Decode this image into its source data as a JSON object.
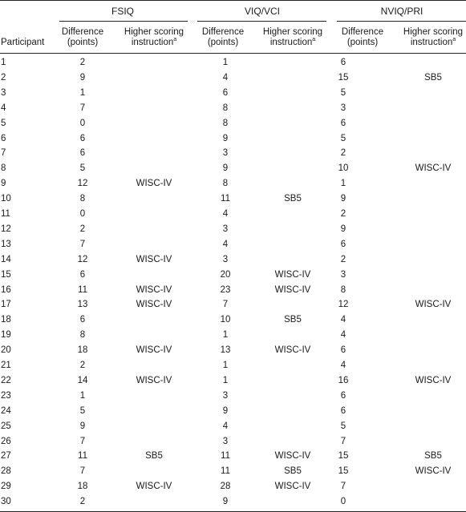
{
  "header": {
    "participant": "Participant",
    "groups": [
      "FSIQ",
      "VIQ/VCI",
      "NVIQ/PRI"
    ],
    "diff_line1": "Difference",
    "diff_line2": "(points)",
    "higher_line1": "Higher scoring",
    "higher_line2": "instruction",
    "footnote_mark": "a"
  },
  "rows": [
    [
      "1",
      "2",
      "",
      "1",
      "",
      "6",
      ""
    ],
    [
      "2",
      "9",
      "",
      "4",
      "",
      "15",
      "SB5"
    ],
    [
      "3",
      "1",
      "",
      "6",
      "",
      "5",
      ""
    ],
    [
      "4",
      "7",
      "",
      "8",
      "",
      "3",
      ""
    ],
    [
      "5",
      "0",
      "",
      "8",
      "",
      "6",
      ""
    ],
    [
      "6",
      "6",
      "",
      "9",
      "",
      "5",
      ""
    ],
    [
      "7",
      "6",
      "",
      "3",
      "",
      "2",
      ""
    ],
    [
      "8",
      "5",
      "",
      "9",
      "",
      "10",
      "WISC-IV"
    ],
    [
      "9",
      "12",
      "WISC-IV",
      "8",
      "",
      "1",
      ""
    ],
    [
      "10",
      "8",
      "",
      "11",
      "SB5",
      "9",
      ""
    ],
    [
      "11",
      "0",
      "",
      "4",
      "",
      "2",
      ""
    ],
    [
      "12",
      "2",
      "",
      "3",
      "",
      "9",
      ""
    ],
    [
      "13",
      "7",
      "",
      "4",
      "",
      "6",
      ""
    ],
    [
      "14",
      "12",
      "WISC-IV",
      "3",
      "",
      "2",
      ""
    ],
    [
      "15",
      "6",
      "",
      "20",
      "WISC-IV",
      "3",
      ""
    ],
    [
      "16",
      "11",
      "WISC-IV",
      "23",
      "WISC-IV",
      "8",
      ""
    ],
    [
      "17",
      "13",
      "WISC-IV",
      "7",
      "",
      "12",
      "WISC-IV"
    ],
    [
      "18",
      "6",
      "",
      "10",
      "SB5",
      "4",
      ""
    ],
    [
      "19",
      "8",
      "",
      "1",
      "",
      "4",
      ""
    ],
    [
      "20",
      "18",
      "WISC-IV",
      "13",
      "WISC-IV",
      "6",
      ""
    ],
    [
      "21",
      "2",
      "",
      "1",
      "",
      "4",
      ""
    ],
    [
      "22",
      "14",
      "WISC-IV",
      "1",
      "",
      "16",
      "WISC-IV"
    ],
    [
      "23",
      "1",
      "",
      "3",
      "",
      "6",
      ""
    ],
    [
      "24",
      "5",
      "",
      "9",
      "",
      "6",
      ""
    ],
    [
      "25",
      "9",
      "",
      "4",
      "",
      "5",
      ""
    ],
    [
      "26",
      "7",
      "",
      "3",
      "",
      "7",
      ""
    ],
    [
      "27",
      "11",
      "SB5",
      "11",
      "WISC-IV",
      "15",
      "SB5"
    ],
    [
      "28",
      "7",
      "",
      "11",
      "SB5",
      "15",
      "WISC-IV"
    ],
    [
      "29",
      "18",
      "WISC-IV",
      "28",
      "WISC-IV",
      "7",
      ""
    ],
    [
      "30",
      "2",
      "",
      "9",
      "",
      "0",
      ""
    ]
  ]
}
